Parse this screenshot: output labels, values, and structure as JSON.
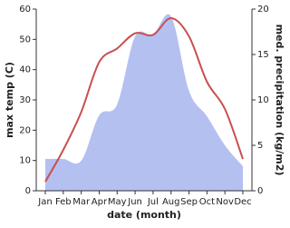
{
  "chart_data": {
    "type": "line",
    "categories": [
      "Jan",
      "Feb",
      "Mar",
      "Apr",
      "May",
      "Jun",
      "Jul",
      "Aug",
      "Sep",
      "Oct",
      "Nov",
      "Dec"
    ],
    "xlabel": "date (month)",
    "ylabel": "max temp (C)",
    "y2label": "med. precipitation (kg/m2)",
    "ylim": [
      0,
      60
    ],
    "yticks": [
      0,
      10,
      20,
      30,
      40,
      50,
      60
    ],
    "y2lim": [
      0,
      20
    ],
    "y2ticks": [
      0,
      5,
      10,
      15,
      20
    ],
    "series": [
      {
        "name": "med. precipitation",
        "kind": "area",
        "axis": "y2",
        "color": "#b4c0f0",
        "values": [
          3.5,
          3.5,
          3.3,
          8.3,
          9.5,
          17,
          17.2,
          19.2,
          11,
          8.2,
          5,
          2.7
        ]
      },
      {
        "name": "max temp",
        "kind": "line",
        "color": "#c8504f",
        "values": [
          3,
          13.5,
          26,
          42.5,
          47,
          52,
          51.5,
          57,
          51,
          36,
          27,
          10.5
        ]
      }
    ]
  }
}
